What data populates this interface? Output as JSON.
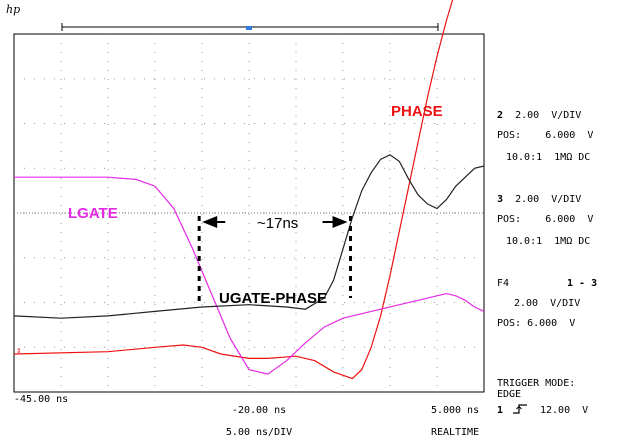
{
  "logo": "hp",
  "chart_data": {
    "type": "line",
    "title": "",
    "xlabel": "5.00 ns/DIV",
    "x_unit": "ns",
    "xlim": [
      -45.0,
      5.0
    ],
    "ticks": {
      "left": "-45.00 ns",
      "center": "-20.00 ns",
      "right": "5.000 ns",
      "right_sub": "REALTIME"
    },
    "series": [
      {
        "name": "PHASE",
        "color": "#ee1111",
        "x": [
          -45,
          -35,
          -30,
          -27,
          -25,
          -23,
          -20,
          -18,
          -15,
          -13,
          -11,
          -9,
          -8,
          -7,
          -6,
          -5,
          -4,
          -3,
          -2,
          -1,
          0,
          1,
          2,
          3,
          4,
          5
        ],
        "y": [
          -3.15,
          -3.1,
          -3.0,
          -2.95,
          -3.0,
          -3.15,
          -3.25,
          -3.25,
          -3.2,
          -3.3,
          -3.55,
          -3.7,
          -3.5,
          -3.0,
          -2.3,
          -1.4,
          -0.4,
          0.6,
          1.6,
          2.6,
          3.5,
          4.3,
          5.0,
          5.6,
          6.1,
          6.4
        ]
      },
      {
        "name": "LGATE",
        "color": "#e52ae5",
        "x": [
          -45,
          -35,
          -32,
          -30,
          -28,
          -26,
          -24,
          -22,
          -20,
          -18,
          -16,
          -14,
          -12,
          -10,
          -8,
          -6,
          -4,
          -2,
          0,
          1,
          2,
          3,
          4,
          5
        ],
        "y": [
          0.8,
          0.8,
          0.75,
          0.6,
          0.1,
          -0.8,
          -1.8,
          -2.8,
          -3.5,
          -3.6,
          -3.3,
          -2.9,
          -2.55,
          -2.35,
          -2.25,
          -2.15,
          -2.05,
          -1.95,
          -1.85,
          -1.8,
          -1.85,
          -1.95,
          -2.1,
          -2.2
        ]
      },
      {
        "name": "UGATE-PHASE",
        "color": "#222222",
        "x": [
          -45,
          -40,
          -35,
          -30,
          -25,
          -20,
          -16,
          -14,
          -12,
          -11,
          -10,
          -9,
          -8,
          -7,
          -6,
          -5,
          -4,
          -3,
          -2,
          -1,
          0,
          1,
          2,
          3,
          4,
          5
        ],
        "y": [
          -2.3,
          -2.35,
          -2.3,
          -2.2,
          -2.1,
          -2.05,
          -2.1,
          -2.15,
          -1.9,
          -1.5,
          -0.8,
          -0.1,
          0.5,
          0.9,
          1.2,
          1.3,
          1.15,
          0.75,
          0.4,
          0.2,
          0.1,
          0.3,
          0.6,
          0.8,
          1.0,
          1.05
        ]
      }
    ],
    "annotations": [
      {
        "text": "~17ns",
        "x": -17.5
      },
      {
        "text": "PHASE",
        "series": "PHASE"
      },
      {
        "text": "LGATE",
        "series": "LGATE"
      },
      {
        "text": "UGATE-PHASE",
        "series": "UGATE-PHASE"
      }
    ]
  },
  "channels": [
    {
      "num": "2",
      "vdiv": "2.00  V/DIV",
      "pos_label": "POS:",
      "pos_value": "6.000  V",
      "probe": "10.0:1  1MΩ DC"
    },
    {
      "num": "3",
      "vdiv": "2.00  V/DIV",
      "pos_label": "POS:",
      "pos_value": "6.000  V",
      "probe": "10.0:1  1MΩ DC"
    }
  ],
  "function": {
    "name": "F4",
    "expr": "1 - 3",
    "vdiv": "2.00  V/DIV",
    "pos": "POS: 6.000  V"
  },
  "trigger": {
    "mode_label": "TRIGGER MODE:",
    "mode": "EDGE",
    "source": "1",
    "level": "12.00  V"
  }
}
